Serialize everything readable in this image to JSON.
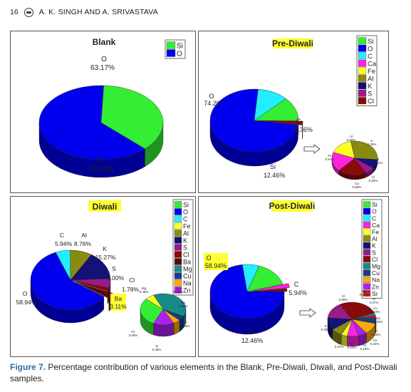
{
  "header": {
    "page_number": "16",
    "authors": "A. K. SINGH AND A. SRIVASTAVA"
  },
  "caption": {
    "label": "Figure 7.",
    "text": "Percentage contribution of various elements in the Blank, Pre-Diwali, Diwali, and Post-Diwali samples."
  },
  "colors": {
    "Si": "#33ee33",
    "O": "#0000ee",
    "C": "#22eeff",
    "Ca": "#ff22dd",
    "Fe": "#ffff22",
    "Al": "#8a8a10",
    "K": "#12127a",
    "S": "#9a1a8a",
    "Cl": "#8a0a0a",
    "Ba": "#5a0a0a",
    "Mg": "#188a8a",
    "Cu": "#1a3a8a",
    "Na": "#ffaa00",
    "Zn": "#aa22ee",
    "Sr": "#cc2222"
  },
  "chart_data": [
    {
      "type": "pie",
      "title": "Blank",
      "legend": [
        "Si",
        "O"
      ],
      "slices": [
        {
          "label": "O",
          "value": 63.17,
          "value_label": "63.17%"
        },
        {
          "label": "Si",
          "value": 36.83,
          "value_label": "36.83%"
        }
      ]
    },
    {
      "type": "pie",
      "title": "Pre-Diwali",
      "legend": [
        "Si",
        "O",
        "C",
        "Ca",
        "Fe",
        "Al",
        "K",
        "S",
        "Cl"
      ],
      "slices": [
        {
          "label": "O",
          "value": 74.2,
          "value_label": "74.2%"
        },
        {
          "label": "C",
          "value": 11.36,
          "value_label": "11.36%"
        },
        {
          "label": "Si",
          "value": 12.46,
          "value_label": "12.46%"
        }
      ],
      "inset": {
        "slices": [
          {
            "label": "Al",
            "value": 0.89,
            "value_label": "0.89%"
          },
          {
            "label": "K",
            "value": 0.26,
            "value_label": "0.26%"
          },
          {
            "label": "S",
            "value": 0.22,
            "value_label": "0.22%"
          },
          {
            "label": "Cl",
            "value": 0.62,
            "value_label": "0.62%"
          },
          {
            "label": "Ca",
            "value": 0.56,
            "value_label": "0.56%"
          },
          {
            "label": "Fe",
            "value": 0.51,
            "value_label": "0.51%"
          }
        ]
      }
    },
    {
      "type": "pie",
      "title": "Diwali",
      "legend": [
        "Si",
        "O",
        "C",
        "Fe",
        "Al",
        "K",
        "S",
        "Cl",
        "Ba",
        "Mg",
        "Cu",
        "Na",
        "Zn"
      ],
      "slices": [
        {
          "label": "O",
          "value": 58.94,
          "value_label": "58.94%"
        },
        {
          "label": "C",
          "value": 5.94,
          "value_label": "5.94%"
        },
        {
          "label": "Al",
          "value": 8.76,
          "value_label": "8.76%"
        },
        {
          "label": "K",
          "value": 15.27,
          "value_label": "15.27%"
        },
        {
          "label": "S",
          "value": 5.0,
          "value_label": "5.00%"
        },
        {
          "label": "Cl",
          "value": 1.78,
          "value_label": "1.78%"
        },
        {
          "label": "Ba",
          "value": 3.11,
          "value_label": "3.11%"
        }
      ],
      "inset": {
        "slices": [
          {
            "label": "Mg",
            "value": 0.48,
            "value_label": "0.48%"
          },
          {
            "label": "Cu",
            "value": 0.06,
            "value_label": "0.06%"
          },
          {
            "label": "Na",
            "value": 0.06,
            "value_label": "0.06%"
          },
          {
            "label": "Zn",
            "value": 0.18,
            "value_label": "0.18%"
          },
          {
            "label": "Si",
            "value": 0.36,
            "value_label": "0.36%"
          },
          {
            "label": "Fe",
            "value": 0.08,
            "value_label": "0.08%"
          }
        ]
      }
    },
    {
      "type": "pie",
      "title": "Post-Diwali",
      "legend": [
        "Si",
        "O",
        "C",
        "Ca",
        "Fe",
        "Al",
        "K",
        "S",
        "Cl",
        "Mg",
        "Cu",
        "Na",
        "Zn",
        "Sr"
      ],
      "slices": [
        {
          "label": "O",
          "value": 58.94,
          "value_label": "58.94%"
        },
        {
          "label": "C",
          "value": 5.94,
          "value_label": "5.94%"
        },
        {
          "label": "Si",
          "value": 12.46,
          "value_label": "12.46%"
        }
      ],
      "inset": {
        "slices": [
          {
            "label": "Cl",
            "value": 0.86,
            "value_label": "0.86%"
          },
          {
            "label": "Mg",
            "value": 0.07,
            "value_label": "0.07%"
          },
          {
            "label": "Sr",
            "value": 0.07,
            "value_label": "0.07%"
          },
          {
            "label": "Cu",
            "value": 0.18,
            "value_label": "0.18%"
          },
          {
            "label": "Na",
            "value": 0.34,
            "value_label": "0.34%"
          },
          {
            "label": "Zn",
            "value": 0.18,
            "value_label": "0.18%"
          },
          {
            "label": "Ca",
            "value": 0.24,
            "value_label": "0.24%"
          },
          {
            "label": "Fe",
            "value": 0.13,
            "value_label": "0.13%"
          },
          {
            "label": "Al",
            "value": 0.24,
            "value_label": "0.24%"
          },
          {
            "label": "K",
            "value": 0.37,
            "value_label": "0.37%"
          },
          {
            "label": "S",
            "value": 0.48,
            "value_label": "0.48%"
          }
        ]
      }
    }
  ]
}
